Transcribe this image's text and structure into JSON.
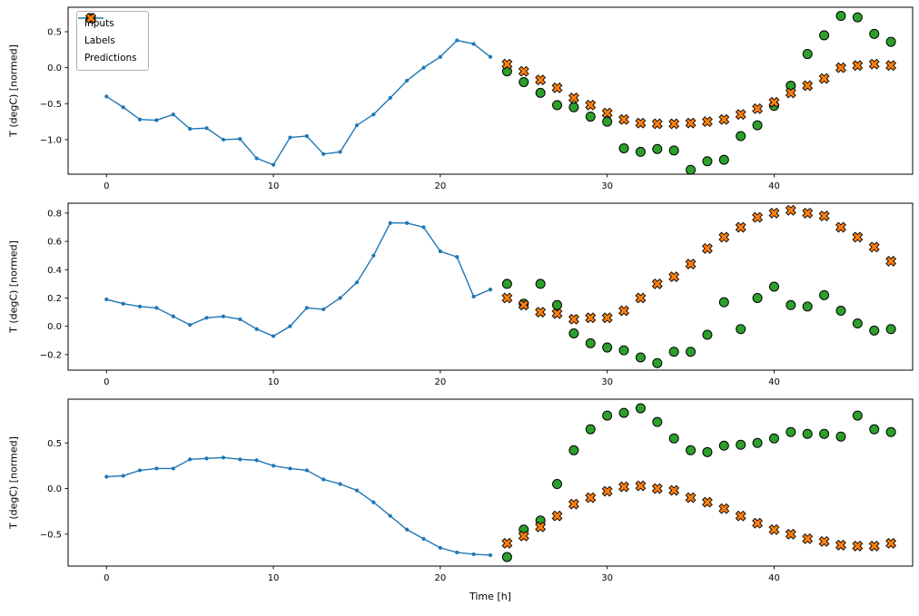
{
  "figure": {
    "xlabel": "Time [h]",
    "background": "#ffffff",
    "xlim": [
      -2.3,
      48.3
    ],
    "x_ticks": {
      "values": [
        0,
        10,
        20,
        30,
        40
      ],
      "labels": [
        "0",
        "10",
        "20",
        "30",
        "40"
      ]
    },
    "colors": {
      "inputs": "#1f77b4",
      "labels": "#2ca02c",
      "predictions": "#ff7f0e",
      "marker_edge": "#000000",
      "axes_edge": "#000000",
      "legend_border": "#b0b0b0"
    },
    "legend": {
      "position": "upper-left",
      "items": [
        {
          "label": "Inputs",
          "icon": "line-with-dot-marker-icon"
        },
        {
          "label": "Labels",
          "icon": "filled-circle-marker-icon"
        },
        {
          "label": "Predictions",
          "icon": "thick-x-marker-icon"
        }
      ]
    }
  },
  "chart_data": [
    {
      "type": "line",
      "ylabel": "T (degC) [normed]",
      "ylim": [
        -1.48,
        0.84
      ],
      "y_ticks": {
        "values": [
          0.5,
          0.0,
          -0.5,
          -1.0
        ],
        "labels": [
          "0.5",
          "0.0",
          "−0.5",
          "−1.0"
        ]
      },
      "grid": false,
      "series": [
        {
          "name": "Inputs",
          "style": "line-with-dots",
          "x": [
            0,
            1,
            2,
            3,
            4,
            5,
            6,
            7,
            8,
            9,
            10,
            11,
            12,
            13,
            14,
            15,
            16,
            17,
            18,
            19,
            20,
            21,
            22,
            23
          ],
          "y": [
            -0.4,
            -0.55,
            -0.72,
            -0.73,
            -0.65,
            -0.85,
            -0.84,
            -1.0,
            -0.99,
            -1.26,
            -1.35,
            -0.97,
            -0.95,
            -1.2,
            -1.17,
            -0.8,
            -0.65,
            -0.42,
            -0.18,
            0.0,
            0.15,
            0.38,
            0.33,
            0.15
          ]
        },
        {
          "name": "Labels",
          "style": "circle",
          "x": [
            24,
            25,
            26,
            27,
            28,
            29,
            30,
            31,
            32,
            33,
            34,
            35,
            36,
            37,
            38,
            39,
            40,
            41,
            42,
            43,
            44,
            45,
            46,
            47
          ],
          "y": [
            -0.05,
            -0.2,
            -0.35,
            -0.52,
            -0.55,
            -0.68,
            -0.75,
            -1.12,
            -1.17,
            -1.13,
            -1.15,
            -1.42,
            -1.3,
            -1.28,
            -0.95,
            -0.8,
            -0.53,
            -0.25,
            0.19,
            0.45,
            0.72,
            0.7,
            0.47,
            0.36
          ]
        },
        {
          "name": "Predictions",
          "style": "thick-x",
          "x": [
            24,
            25,
            26,
            27,
            28,
            29,
            30,
            31,
            32,
            33,
            34,
            35,
            36,
            37,
            38,
            39,
            40,
            41,
            42,
            43,
            44,
            45,
            46,
            47
          ],
          "y": [
            0.05,
            -0.05,
            -0.17,
            -0.28,
            -0.42,
            -0.52,
            -0.63,
            -0.72,
            -0.77,
            -0.78,
            -0.78,
            -0.77,
            -0.75,
            -0.72,
            -0.65,
            -0.57,
            -0.48,
            -0.35,
            -0.25,
            -0.15,
            0.0,
            0.03,
            0.05,
            0.03
          ]
        }
      ]
    },
    {
      "type": "line",
      "ylabel": "T (degC) [normed]",
      "ylim": [
        -0.31,
        0.87
      ],
      "y_ticks": {
        "values": [
          0.8,
          0.6,
          0.4,
          0.2,
          0.0,
          -0.2
        ],
        "labels": [
          "0.8",
          "0.6",
          "0.4",
          "0.2",
          "0.0",
          "−0.2"
        ]
      },
      "grid": false,
      "series": [
        {
          "name": "Inputs",
          "style": "line-with-dots",
          "x": [
            0,
            1,
            2,
            3,
            4,
            5,
            6,
            7,
            8,
            9,
            10,
            11,
            12,
            13,
            14,
            15,
            16,
            17,
            18,
            19,
            20,
            21,
            22,
            23
          ],
          "y": [
            0.19,
            0.16,
            0.14,
            0.13,
            0.07,
            0.01,
            0.06,
            0.07,
            0.05,
            -0.02,
            -0.07,
            0.0,
            0.13,
            0.12,
            0.2,
            0.31,
            0.5,
            0.73,
            0.73,
            0.7,
            0.53,
            0.49,
            0.21,
            0.26
          ]
        },
        {
          "name": "Labels",
          "style": "circle",
          "x": [
            24,
            25,
            26,
            27,
            28,
            29,
            30,
            31,
            32,
            33,
            34,
            35,
            36,
            37,
            38,
            39,
            40,
            41,
            42,
            43,
            44,
            45,
            46,
            47
          ],
          "y": [
            0.3,
            0.16,
            0.3,
            0.15,
            -0.05,
            -0.12,
            -0.15,
            -0.17,
            -0.22,
            -0.26,
            -0.18,
            -0.18,
            -0.06,
            0.17,
            -0.02,
            0.2,
            0.28,
            0.15,
            0.14,
            0.22,
            0.11,
            0.02,
            -0.03,
            -0.02
          ]
        },
        {
          "name": "Predictions",
          "style": "thick-x",
          "x": [
            24,
            25,
            26,
            27,
            28,
            29,
            30,
            31,
            32,
            33,
            34,
            35,
            36,
            37,
            38,
            39,
            40,
            41,
            42,
            43,
            44,
            45,
            46,
            47
          ],
          "y": [
            0.2,
            0.15,
            0.1,
            0.09,
            0.05,
            0.06,
            0.06,
            0.11,
            0.2,
            0.3,
            0.35,
            0.44,
            0.55,
            0.63,
            0.7,
            0.77,
            0.8,
            0.82,
            0.8,
            0.78,
            0.7,
            0.63,
            0.56,
            0.46
          ]
        }
      ]
    },
    {
      "type": "line",
      "ylabel": "T (degC) [normed]",
      "ylim": [
        -0.85,
        0.98
      ],
      "y_ticks": {
        "values": [
          0.5,
          0.0,
          -0.5
        ],
        "labels": [
          "0.5",
          "0.0",
          "−0.5"
        ]
      },
      "grid": false,
      "series": [
        {
          "name": "Inputs",
          "style": "line-with-dots",
          "x": [
            0,
            1,
            2,
            3,
            4,
            5,
            6,
            7,
            8,
            9,
            10,
            11,
            12,
            13,
            14,
            15,
            16,
            17,
            18,
            19,
            20,
            21,
            22,
            23
          ],
          "y": [
            0.13,
            0.14,
            0.2,
            0.22,
            0.22,
            0.32,
            0.33,
            0.34,
            0.32,
            0.31,
            0.25,
            0.22,
            0.2,
            0.1,
            0.05,
            -0.02,
            -0.15,
            -0.3,
            -0.45,
            -0.55,
            -0.65,
            -0.7,
            -0.72,
            -0.73
          ]
        },
        {
          "name": "Labels",
          "style": "circle",
          "x": [
            24,
            25,
            26,
            27,
            28,
            29,
            30,
            31,
            32,
            33,
            34,
            35,
            36,
            37,
            38,
            39,
            40,
            41,
            42,
            43,
            44,
            45,
            46,
            47
          ],
          "y": [
            -0.75,
            -0.45,
            -0.35,
            0.05,
            0.42,
            0.65,
            0.8,
            0.83,
            0.88,
            0.73,
            0.55,
            0.42,
            0.4,
            0.47,
            0.48,
            0.5,
            0.55,
            0.62,
            0.6,
            0.6,
            0.57,
            0.8,
            0.65,
            0.62
          ]
        },
        {
          "name": "Predictions",
          "style": "thick-x",
          "x": [
            24,
            25,
            26,
            27,
            28,
            29,
            30,
            31,
            32,
            33,
            34,
            35,
            36,
            37,
            38,
            39,
            40,
            41,
            42,
            43,
            44,
            45,
            46,
            47
          ],
          "y": [
            -0.6,
            -0.52,
            -0.42,
            -0.3,
            -0.17,
            -0.1,
            -0.03,
            0.02,
            0.03,
            0.0,
            -0.02,
            -0.1,
            -0.15,
            -0.22,
            -0.3,
            -0.38,
            -0.45,
            -0.5,
            -0.55,
            -0.58,
            -0.62,
            -0.63,
            -0.63,
            -0.6
          ]
        }
      ]
    }
  ]
}
